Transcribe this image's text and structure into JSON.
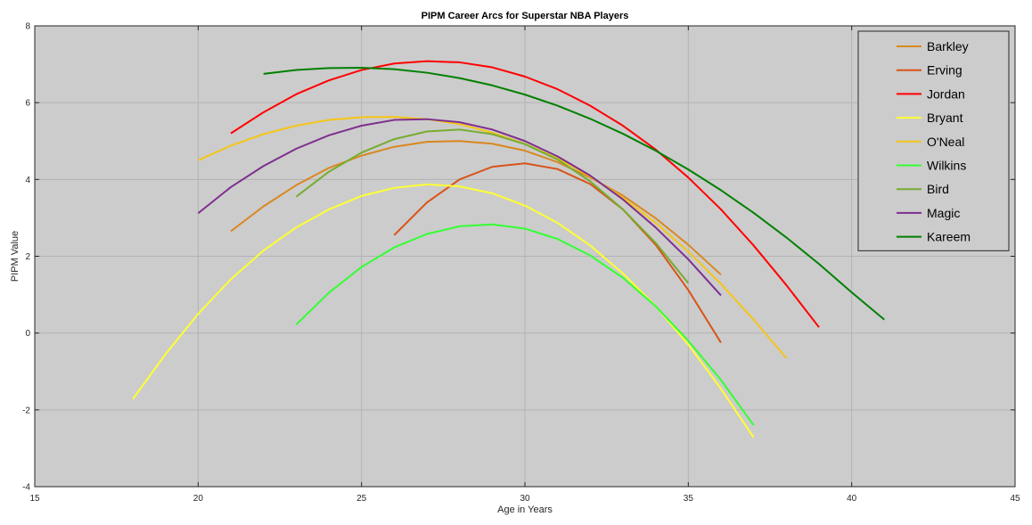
{
  "chart_data": {
    "type": "line",
    "title": "PIPM Career Arcs for Superstar NBA Players",
    "xlabel": "Age in Years",
    "ylabel": "PIPM Value",
    "xlim": [
      15,
      45
    ],
    "ylim": [
      -4,
      8
    ],
    "xticks": [
      15,
      20,
      25,
      30,
      35,
      40,
      45
    ],
    "yticks": [
      -4,
      -2,
      0,
      2,
      4,
      6,
      8
    ],
    "grid": true,
    "legend_position": "top-right",
    "background": "#cccccc",
    "series": [
      {
        "name": "Barkley",
        "color": "#d9881f",
        "x": [
          21,
          22,
          23,
          24,
          25,
          26,
          27,
          28,
          29,
          30,
          31,
          32,
          33,
          34,
          35,
          36
        ],
        "y": [
          2.65,
          3.3,
          3.85,
          4.3,
          4.62,
          4.85,
          4.98,
          5.0,
          4.93,
          4.75,
          4.45,
          4.05,
          3.58,
          2.99,
          2.3,
          1.52
        ]
      },
      {
        "name": "Erving",
        "color": "#d95319",
        "x": [
          26,
          27,
          28,
          29,
          30,
          31,
          32,
          33,
          34,
          35,
          36
        ],
        "y": [
          2.55,
          3.4,
          4.0,
          4.33,
          4.42,
          4.27,
          3.88,
          3.22,
          2.3,
          1.12,
          -0.25
        ]
      },
      {
        "name": "Jordan",
        "color": "#ff0000",
        "x": [
          21,
          22,
          23,
          24,
          25,
          26,
          27,
          28,
          29,
          30,
          31,
          32,
          33,
          34,
          35,
          36,
          37,
          38,
          39
        ],
        "y": [
          5.2,
          5.75,
          6.22,
          6.58,
          6.85,
          7.02,
          7.08,
          7.05,
          6.92,
          6.68,
          6.35,
          5.92,
          5.4,
          4.78,
          4.05,
          3.22,
          2.28,
          1.25,
          0.15
        ]
      },
      {
        "name": "Bryant",
        "color": "#ffff33",
        "x": [
          18,
          19,
          20,
          21,
          22,
          23,
          24,
          25,
          26,
          27,
          28,
          29,
          30,
          31,
          32,
          33,
          34,
          35,
          36,
          37
        ],
        "y": [
          -1.72,
          -0.55,
          0.5,
          1.4,
          2.15,
          2.75,
          3.22,
          3.57,
          3.78,
          3.87,
          3.82,
          3.64,
          3.32,
          2.87,
          2.28,
          1.55,
          0.7,
          -0.3,
          -1.45,
          -2.72
        ]
      },
      {
        "name": "O'Neal",
        "color": "#f5c518",
        "x": [
          20,
          21,
          22,
          23,
          24,
          25,
          26,
          27,
          28,
          29,
          30,
          31,
          32,
          33,
          34,
          35,
          36,
          37,
          38
        ],
        "y": [
          4.5,
          4.88,
          5.18,
          5.4,
          5.55,
          5.62,
          5.63,
          5.57,
          5.44,
          5.22,
          4.93,
          4.55,
          4.08,
          3.52,
          2.87,
          2.12,
          1.28,
          0.35,
          -0.65
        ]
      },
      {
        "name": "Wilkins",
        "color": "#33ff33",
        "x": [
          23,
          24,
          25,
          26,
          27,
          28,
          29,
          30,
          31,
          32,
          33,
          34,
          35,
          36,
          37
        ],
        "y": [
          0.22,
          1.05,
          1.72,
          2.23,
          2.58,
          2.78,
          2.83,
          2.72,
          2.45,
          2.02,
          1.44,
          0.7,
          -0.2,
          -1.22,
          -2.4
        ]
      },
      {
        "name": "Bird",
        "color": "#77ac30",
        "x": [
          23,
          24,
          25,
          26,
          27,
          28,
          29,
          30,
          31,
          32,
          33,
          34,
          35
        ],
        "y": [
          3.55,
          4.2,
          4.7,
          5.05,
          5.25,
          5.3,
          5.18,
          4.92,
          4.52,
          3.95,
          3.22,
          2.35,
          1.3
        ]
      },
      {
        "name": "Magic",
        "color": "#7e2f8e",
        "x": [
          20,
          21,
          22,
          23,
          24,
          25,
          26,
          27,
          28,
          29,
          30,
          31,
          32,
          33,
          34,
          35,
          36
        ],
        "y": [
          3.12,
          3.8,
          4.35,
          4.8,
          5.15,
          5.4,
          5.55,
          5.57,
          5.49,
          5.3,
          5.0,
          4.6,
          4.1,
          3.48,
          2.75,
          1.92,
          0.98
        ]
      },
      {
        "name": "Kareem",
        "color": "#008000",
        "x": [
          22,
          23,
          24,
          25,
          26,
          27,
          28,
          29,
          30,
          31,
          32,
          33,
          34,
          35,
          36,
          37,
          38,
          39,
          40,
          41
        ],
        "y": [
          6.75,
          6.85,
          6.9,
          6.91,
          6.87,
          6.78,
          6.64,
          6.45,
          6.21,
          5.92,
          5.58,
          5.19,
          4.75,
          4.26,
          3.72,
          3.13,
          2.49,
          1.8,
          1.06,
          0.35
        ]
      }
    ]
  }
}
